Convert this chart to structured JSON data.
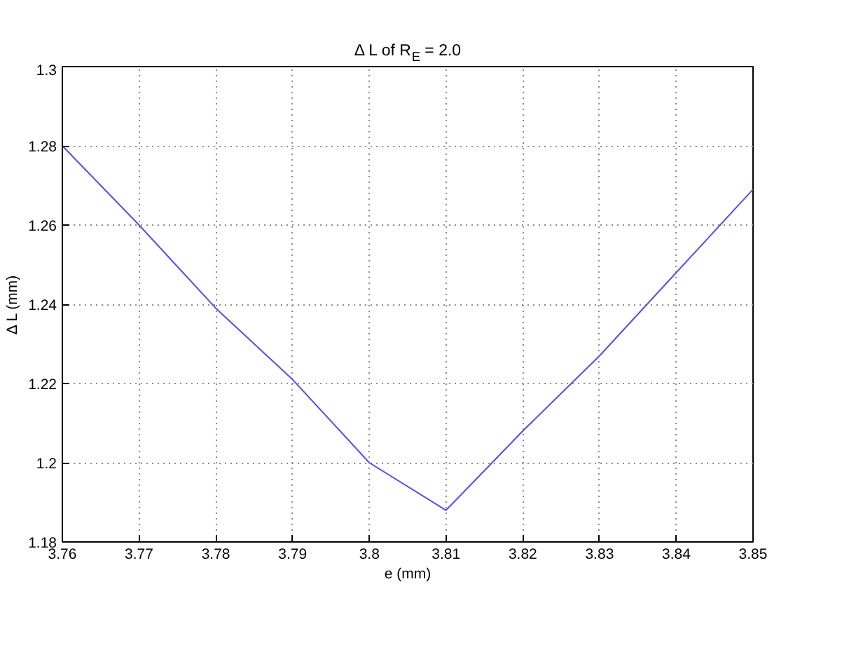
{
  "chart_data": {
    "type": "line",
    "title": "Δ L of R$_{E}$ = 2.0",
    "xlabel": "e (mm)",
    "ylabel": "Δ L (mm)",
    "x": [
      3.76,
      3.77,
      3.78,
      3.79,
      3.8,
      3.81,
      3.82,
      3.83,
      3.84,
      3.85
    ],
    "series": [
      {
        "color": "#5050e6",
        "values": [
          1.28,
          1.26,
          1.239,
          1.221,
          1.2,
          1.188,
          1.208,
          1.227,
          1.248,
          1.269
        ]
      }
    ],
    "xlim": [
      3.76,
      3.85
    ],
    "ylim": [
      1.18,
      1.3
    ],
    "xticks": [
      3.76,
      3.77,
      3.78,
      3.79,
      3.8,
      3.81,
      3.82,
      3.83,
      3.84,
      3.85
    ],
    "yticks": [
      1.18,
      1.2,
      1.22,
      1.24,
      1.26,
      1.28,
      1.3
    ],
    "grid": true,
    "line_style": "solid"
  }
}
